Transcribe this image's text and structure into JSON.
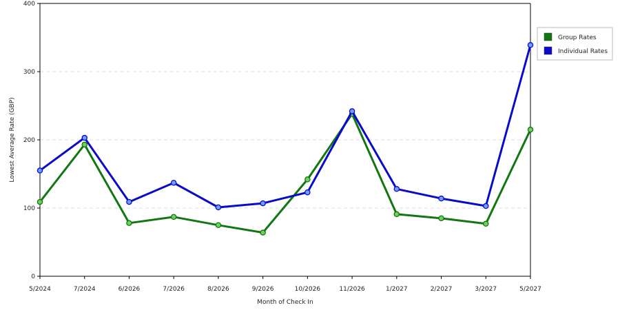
{
  "chart_data": {
    "type": "line",
    "title": "",
    "xlabel": "Month of Check In",
    "ylabel": "Lowest Average Rate (GBP)",
    "ylim": [
      0,
      400
    ],
    "yticks": [
      0,
      100,
      200,
      300,
      400
    ],
    "categories": [
      "5/2024",
      "7/2024",
      "6/2026",
      "7/2026",
      "8/2026",
      "9/2026",
      "10/2026",
      "11/2026",
      "1/2027",
      "2/2027",
      "3/2027",
      "5/2027"
    ],
    "grid": true,
    "legend_position": "right",
    "series": [
      {
        "name": "Group Rates",
        "color": "#117711",
        "values": [
          109,
          193,
          78,
          87,
          75,
          64,
          142,
          238,
          91,
          85,
          77,
          215
        ]
      },
      {
        "name": "Individual Rates",
        "color": "#0a0acc",
        "values": [
          155,
          203,
          109,
          137,
          101,
          107,
          123,
          242,
          128,
          114,
          103,
          339
        ]
      }
    ]
  }
}
